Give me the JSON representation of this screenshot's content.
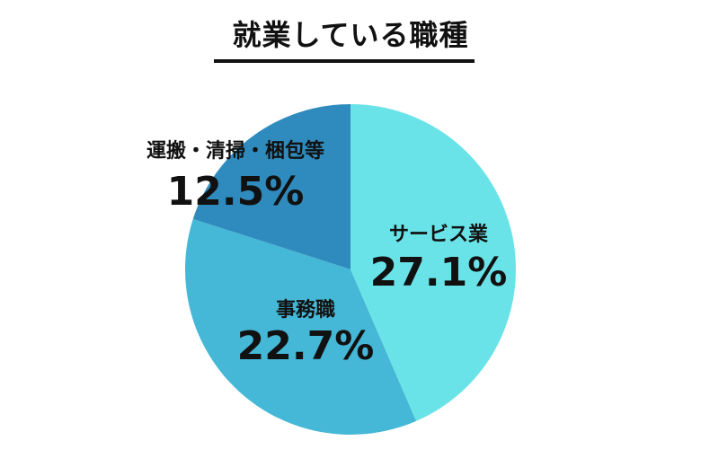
{
  "chart_data": {
    "type": "pie",
    "title": "就業している職種",
    "slices": [
      {
        "label": "サービス業",
        "value": 27.1,
        "value_label": "27.1%",
        "color": "#6ae3e8"
      },
      {
        "label": "事務職",
        "value": 22.7,
        "value_label": "22.7%",
        "color": "#44b8d6"
      },
      {
        "label": "運搬・清掃・梱包等",
        "value": 12.5,
        "value_label": "12.5%",
        "color": "#2f8bbd"
      }
    ],
    "legend": "none"
  }
}
